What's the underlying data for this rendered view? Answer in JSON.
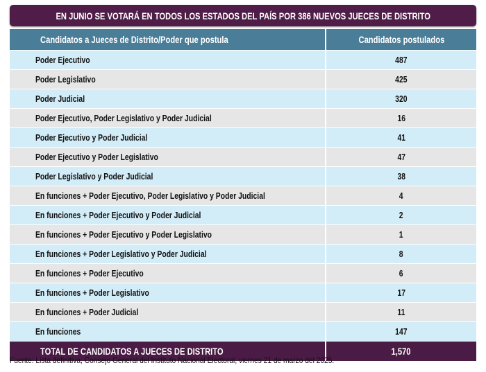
{
  "title": "EN JUNIO SE VOTARÁ EN TODOS LOS ESTADOS DEL PAÍS POR  386 NUEVOS JUECES DE DISTRITO",
  "headers": [
    "Candidatos a Jueces de Distrito/Poder que postula",
    "Candidatos postulados"
  ],
  "rows": [
    {
      "label": "Poder Ejecutivo",
      "value": "487"
    },
    {
      "label": "Poder Legislativo",
      "value": "425"
    },
    {
      "label": "Poder Judicial",
      "value": "320"
    },
    {
      "label": "Poder Ejecutivo, Poder Legislativo y Poder Judicial",
      "value": "16"
    },
    {
      "label": "Poder Ejecutivo y Poder Judicial",
      "value": "41"
    },
    {
      "label": "Poder Ejecutivo y Poder Legislativo",
      "value": "47"
    },
    {
      "label": "Poder Legislativo y Poder Judicial",
      "value": "38"
    },
    {
      "label": "En funciones + Poder Ejecutivo, Poder Legislativo y Poder Judicial",
      "value": "4"
    },
    {
      "label": "En funciones + Poder Ejecutivo y Poder Judicial",
      "value": "2"
    },
    {
      "label": "En funciones + Poder Ejecutivo y Poder Legislativo",
      "value": "1"
    },
    {
      "label": "En funciones + Poder Legislativo y Poder Judicial",
      "value": "8"
    },
    {
      "label": "En funciones + Poder Ejecutivo",
      "value": "6"
    },
    {
      "label": "En funciones + Poder Legislativo",
      "value": "17"
    },
    {
      "label": "En funciones + Poder Judicial",
      "value": "11"
    },
    {
      "label": "En funciones",
      "value": "147"
    }
  ],
  "total": {
    "label": "TOTAL DE CANDIDATOS A JUECES DE DISTRITO",
    "value": "1,570"
  },
  "footnote": "Fuente: Lista definitiva, Consejo General del Instituto Nacional Electoral, viernes 21 de marzo del 2025.",
  "colors": {
    "title_bg": "#4f1d47",
    "header_bg": "#4a7d98",
    "row_blue": "#d3edf8",
    "row_gray": "#e6e6e6"
  }
}
